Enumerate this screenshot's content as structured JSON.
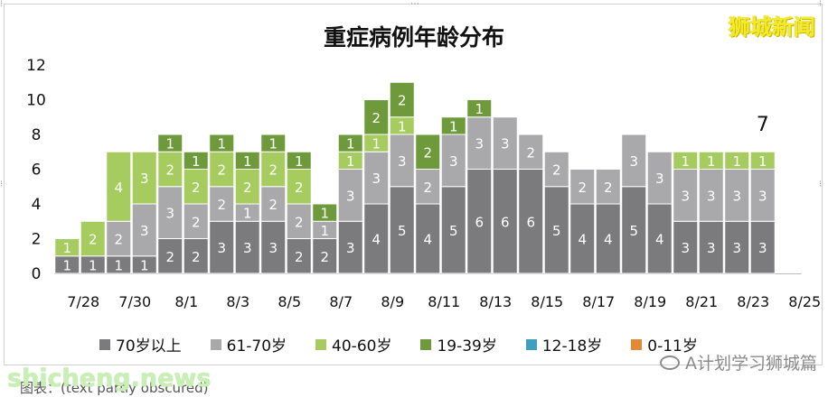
{
  "title": "重症病例年龄分布",
  "brand": "狮城新闻",
  "watermark": "shicheng.news",
  "source": "图表：(text partly obscured)",
  "wechat": "A计划学习狮城篇",
  "colors": {
    "70+": "#7b7b7d",
    "61-70": "#a9a9ab",
    "40-60": "#a6cc5f",
    "19-39": "#6f9a3c",
    "12-18": "#3e9fbf",
    "0-11": "#e08a3a"
  },
  "chart_data": {
    "type": "bar",
    "stacked": true,
    "title": "重症病例年龄分布",
    "ylim": [
      0,
      12
    ],
    "yticks": [
      0,
      2,
      4,
      6,
      8,
      10,
      12
    ],
    "xtick_labels": [
      "7/28",
      "7/30",
      "8/1",
      "8/3",
      "8/5",
      "8/7",
      "8/9",
      "8/11",
      "8/13",
      "8/15",
      "8/17",
      "8/19",
      "8/21",
      "8/23",
      "8/25"
    ],
    "categories": [
      "7/28",
      "7/29",
      "7/30",
      "7/31",
      "8/1",
      "8/2",
      "8/3",
      "8/4",
      "8/5",
      "8/6",
      "8/7",
      "8/8",
      "8/9",
      "8/10",
      "8/11",
      "8/12",
      "8/13",
      "8/14",
      "8/15",
      "8/16",
      "8/17",
      "8/18",
      "8/19",
      "8/20",
      "8/21",
      "8/22",
      "8/23",
      "8/24",
      "8/25"
    ],
    "series": [
      {
        "name": "70岁以上",
        "key": "70+",
        "values": [
          1,
          1,
          1,
          1,
          2,
          2,
          3,
          3,
          3,
          2,
          2,
          3,
          4,
          5,
          4,
          5,
          6,
          6,
          6,
          5,
          4,
          4,
          5,
          4,
          3,
          3,
          3,
          3,
          0
        ]
      },
      {
        "name": "61-70岁",
        "key": "61-70",
        "values": [
          0,
          0,
          2,
          3,
          3,
          2,
          2,
          1,
          2,
          2,
          1,
          3,
          3,
          3,
          2,
          3,
          3,
          3,
          2,
          2,
          2,
          2,
          3,
          3,
          3,
          3,
          3,
          3,
          0
        ]
      },
      {
        "name": "40-60岁",
        "key": "40-60",
        "values": [
          1,
          2,
          4,
          3,
          2,
          2,
          2,
          2,
          2,
          2,
          0,
          1,
          1,
          1,
          0,
          0,
          0,
          0,
          0,
          0,
          0,
          0,
          0,
          0,
          1,
          1,
          1,
          1,
          0
        ]
      },
      {
        "name": "19-39岁",
        "key": "19-39",
        "values": [
          0,
          0,
          0,
          0,
          1,
          1,
          1,
          1,
          1,
          1,
          1,
          1,
          2,
          2,
          2,
          1,
          1,
          0,
          0,
          0,
          0,
          0,
          0,
          0,
          0,
          0,
          0,
          0,
          0
        ]
      },
      {
        "name": "12-18岁",
        "key": "12-18",
        "values": [
          0,
          0,
          0,
          0,
          0,
          0,
          0,
          0,
          0,
          0,
          0,
          0,
          0,
          0,
          0,
          0,
          0,
          0,
          0,
          0,
          0,
          0,
          0,
          0,
          0,
          0,
          0,
          0,
          0
        ]
      },
      {
        "name": "0-11岁",
        "key": "0-11",
        "values": [
          0,
          0,
          0,
          0,
          0,
          0,
          0,
          0,
          0,
          0,
          0,
          0,
          0,
          0,
          0,
          0,
          0,
          0,
          0,
          0,
          0,
          0,
          0,
          0,
          0,
          0,
          0,
          0,
          0
        ]
      }
    ],
    "annotations": [
      {
        "text": "7",
        "x": "8/24"
      }
    ],
    "legend": "bottom",
    "grid": false
  }
}
